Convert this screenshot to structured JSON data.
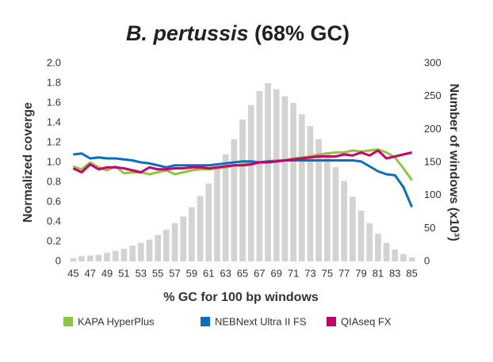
{
  "chart_data": {
    "type": "combo",
    "title": [
      "B. pertussis",
      "(68% GC)"
    ],
    "xlabel": "% GC for 100 bp windows",
    "ylabel": "Normalized coverge",
    "y2label": "Number of windows (x10³)",
    "x": [
      45,
      46,
      47,
      48,
      49,
      50,
      51,
      52,
      53,
      54,
      55,
      56,
      57,
      58,
      59,
      60,
      61,
      62,
      63,
      64,
      65,
      66,
      67,
      68,
      69,
      70,
      71,
      72,
      73,
      74,
      75,
      76,
      77,
      78,
      79,
      80,
      81,
      82,
      83,
      84,
      85
    ],
    "xlim": [
      44.5,
      85.5
    ],
    "xticks": [
      45,
      47,
      49,
      51,
      53,
      55,
      57,
      59,
      61,
      63,
      65,
      67,
      69,
      71,
      73,
      75,
      77,
      79,
      81,
      83,
      85
    ],
    "ylim": [
      0,
      2
    ],
    "yticks": [
      0,
      0.2,
      0.4,
      0.6,
      0.8,
      {
        "value": 1,
        "label": "1.0"
      },
      1.2,
      1.4,
      1.6,
      1.8,
      {
        "value": 2,
        "label": "2.0"
      }
    ],
    "y2lim": [
      0,
      300
    ],
    "y2ticks": [
      0,
      50,
      100,
      150,
      200,
      250,
      300
    ],
    "series": [
      {
        "type": "bar",
        "axis": "y2",
        "color": "#d3d3d1",
        "values": [
          5,
          8,
          9,
          10,
          13,
          16,
          19,
          24,
          28,
          33,
          40,
          48,
          58,
          68,
          82,
          99,
          118,
          140,
          162,
          185,
          215,
          237,
          258,
          270,
          261,
          250,
          240,
          223,
          205,
          185,
          166,
          143,
          122,
          98,
          77,
          58,
          42,
          28,
          18,
          11,
          6
        ]
      },
      {
        "type": "line",
        "name": "KAPA HyperPlus",
        "color": "#8dc63f",
        "values": [
          0.96,
          0.93,
          1.0,
          0.95,
          0.92,
          0.96,
          0.89,
          0.9,
          0.9,
          0.88,
          0.9,
          0.92,
          0.88,
          0.9,
          0.92,
          0.93,
          0.93,
          0.94,
          0.95,
          0.97,
          0.98,
          0.99,
          1.0,
          1.01,
          1.02,
          1.02,
          1.04,
          1.05,
          1.06,
          1.08,
          1.09,
          1.1,
          1.1,
          1.12,
          1.11,
          1.12,
          1.13,
          1.1,
          1.05,
          0.94,
          0.82
        ]
      },
      {
        "type": "line",
        "name": "NEBNext Ultra II FS",
        "color": "#0a6fbd",
        "values": [
          1.08,
          1.09,
          1.04,
          1.05,
          1.04,
          1.04,
          1.03,
          1.02,
          1.0,
          0.99,
          0.97,
          0.95,
          0.97,
          0.97,
          0.97,
          0.97,
          0.97,
          0.98,
          0.99,
          1.0,
          1.01,
          1.01,
          1.0,
          1.01,
          1.01,
          1.02,
          1.02,
          1.02,
          1.02,
          1.02,
          1.02,
          1.02,
          1.02,
          1.02,
          1.01,
          0.96,
          0.91,
          0.88,
          0.87,
          0.75,
          0.55
        ]
      },
      {
        "type": "line",
        "name": "QIAseq FX",
        "color": "#c8006e",
        "values": [
          0.94,
          0.9,
          0.98,
          0.93,
          0.95,
          0.95,
          0.94,
          0.92,
          0.9,
          0.95,
          0.93,
          0.93,
          0.94,
          0.94,
          0.95,
          0.95,
          0.94,
          0.95,
          0.96,
          0.97,
          0.97,
          0.98,
          1.0,
          1.0,
          1.01,
          1.02,
          1.03,
          1.04,
          1.05,
          1.06,
          1.06,
          1.06,
          1.08,
          1.07,
          1.1,
          1.07,
          1.12,
          1.04,
          1.06,
          1.08,
          1.1
        ]
      }
    ]
  }
}
